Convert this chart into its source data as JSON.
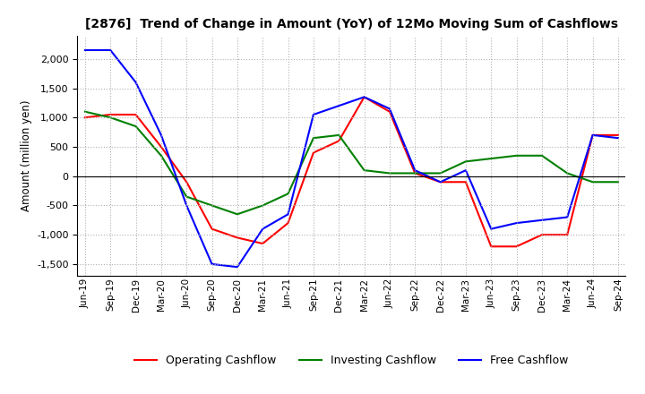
{
  "title": "[2876]  Trend of Change in Amount (YoY) of 12Mo Moving Sum of Cashflows",
  "ylabel": "Amount (million yen)",
  "x_labels": [
    "Jun-19",
    "Sep-19",
    "Dec-19",
    "Mar-20",
    "Jun-20",
    "Sep-20",
    "Dec-20",
    "Mar-21",
    "Jun-21",
    "Sep-21",
    "Dec-21",
    "Mar-22",
    "Jun-22",
    "Sep-22",
    "Dec-22",
    "Mar-23",
    "Jun-23",
    "Sep-23",
    "Dec-23",
    "Mar-24",
    "Jun-24",
    "Sep-24"
  ],
  "operating": [
    1000,
    1050,
    1050,
    500,
    -100,
    -900,
    -1050,
    -1150,
    -800,
    400,
    600,
    1350,
    1100,
    50,
    -100,
    -100,
    -1200,
    -1200,
    -1000,
    -1000,
    700,
    700
  ],
  "investing": [
    1100,
    1000,
    850,
    350,
    -350,
    -500,
    -650,
    -500,
    -300,
    650,
    700,
    100,
    50,
    50,
    50,
    250,
    300,
    350,
    350,
    50,
    -100,
    -100
  ],
  "free": [
    2150,
    2150,
    1600,
    700,
    -500,
    -1500,
    -1550,
    -900,
    -650,
    1050,
    1200,
    1350,
    1150,
    100,
    -100,
    100,
    -900,
    -800,
    -750,
    -700,
    700,
    650
  ],
  "operating_color": "#ff0000",
  "investing_color": "#008000",
  "free_color": "#0000ff",
  "ylim": [
    -1700,
    2400
  ],
  "yticks": [
    -1500,
    -1000,
    -500,
    0,
    500,
    1000,
    1500,
    2000
  ],
  "background_color": "#ffffff",
  "grid_color": "#b0b0b0"
}
